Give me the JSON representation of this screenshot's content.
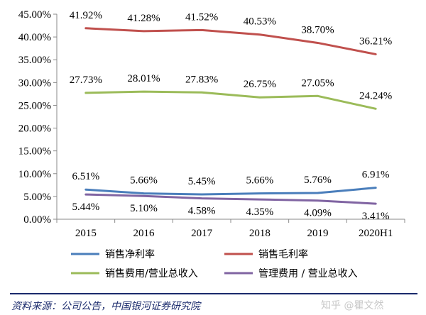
{
  "chart_data": {
    "type": "line",
    "categories": [
      "2015",
      "2016",
      "2017",
      "2018",
      "2019",
      "2020H1"
    ],
    "ylim": [
      0,
      45
    ],
    "yticks": [
      "0.00%",
      "5.00%",
      "10.00%",
      "15.00%",
      "20.00%",
      "25.00%",
      "30.00%",
      "35.00%",
      "40.00%",
      "45.00%"
    ],
    "grid": false,
    "legend_placement": "bottom",
    "series": [
      {
        "name": "销售净利率",
        "color": "#4a7ebb",
        "values": [
          6.51,
          5.66,
          5.45,
          5.66,
          5.76,
          6.91
        ],
        "labels": [
          "6.51%",
          "5.66%",
          "5.45%",
          "5.66%",
          "5.76%",
          "6.91%"
        ]
      },
      {
        "name": "销售毛利率",
        "color": "#c0504d",
        "values": [
          41.92,
          41.28,
          41.52,
          40.53,
          38.7,
          36.21
        ],
        "labels": [
          "41.92%",
          "41.28%",
          "41.52%",
          "40.53%",
          "38.70%",
          "36.21%"
        ]
      },
      {
        "name": "销售费用/营业总收入",
        "color": "#9bbb59",
        "values": [
          27.73,
          28.01,
          27.83,
          26.75,
          27.05,
          24.24
        ],
        "labels": [
          "27.73%",
          "28.01%",
          "27.83%",
          "26.75%",
          "27.05%",
          "24.24%"
        ]
      },
      {
        "name": "管理费用 / 营业总收入",
        "color": "#8064a2",
        "values": [
          5.44,
          5.1,
          4.58,
          4.35,
          4.09,
          3.41
        ],
        "labels": [
          "5.44%",
          "5.10%",
          "4.58%",
          "4.35%",
          "4.09%",
          "3.41%"
        ]
      }
    ]
  },
  "footer": {
    "source": "资料来源：公司公告，中国银河证券研究院",
    "watermark": "知乎 @瞿文然"
  }
}
